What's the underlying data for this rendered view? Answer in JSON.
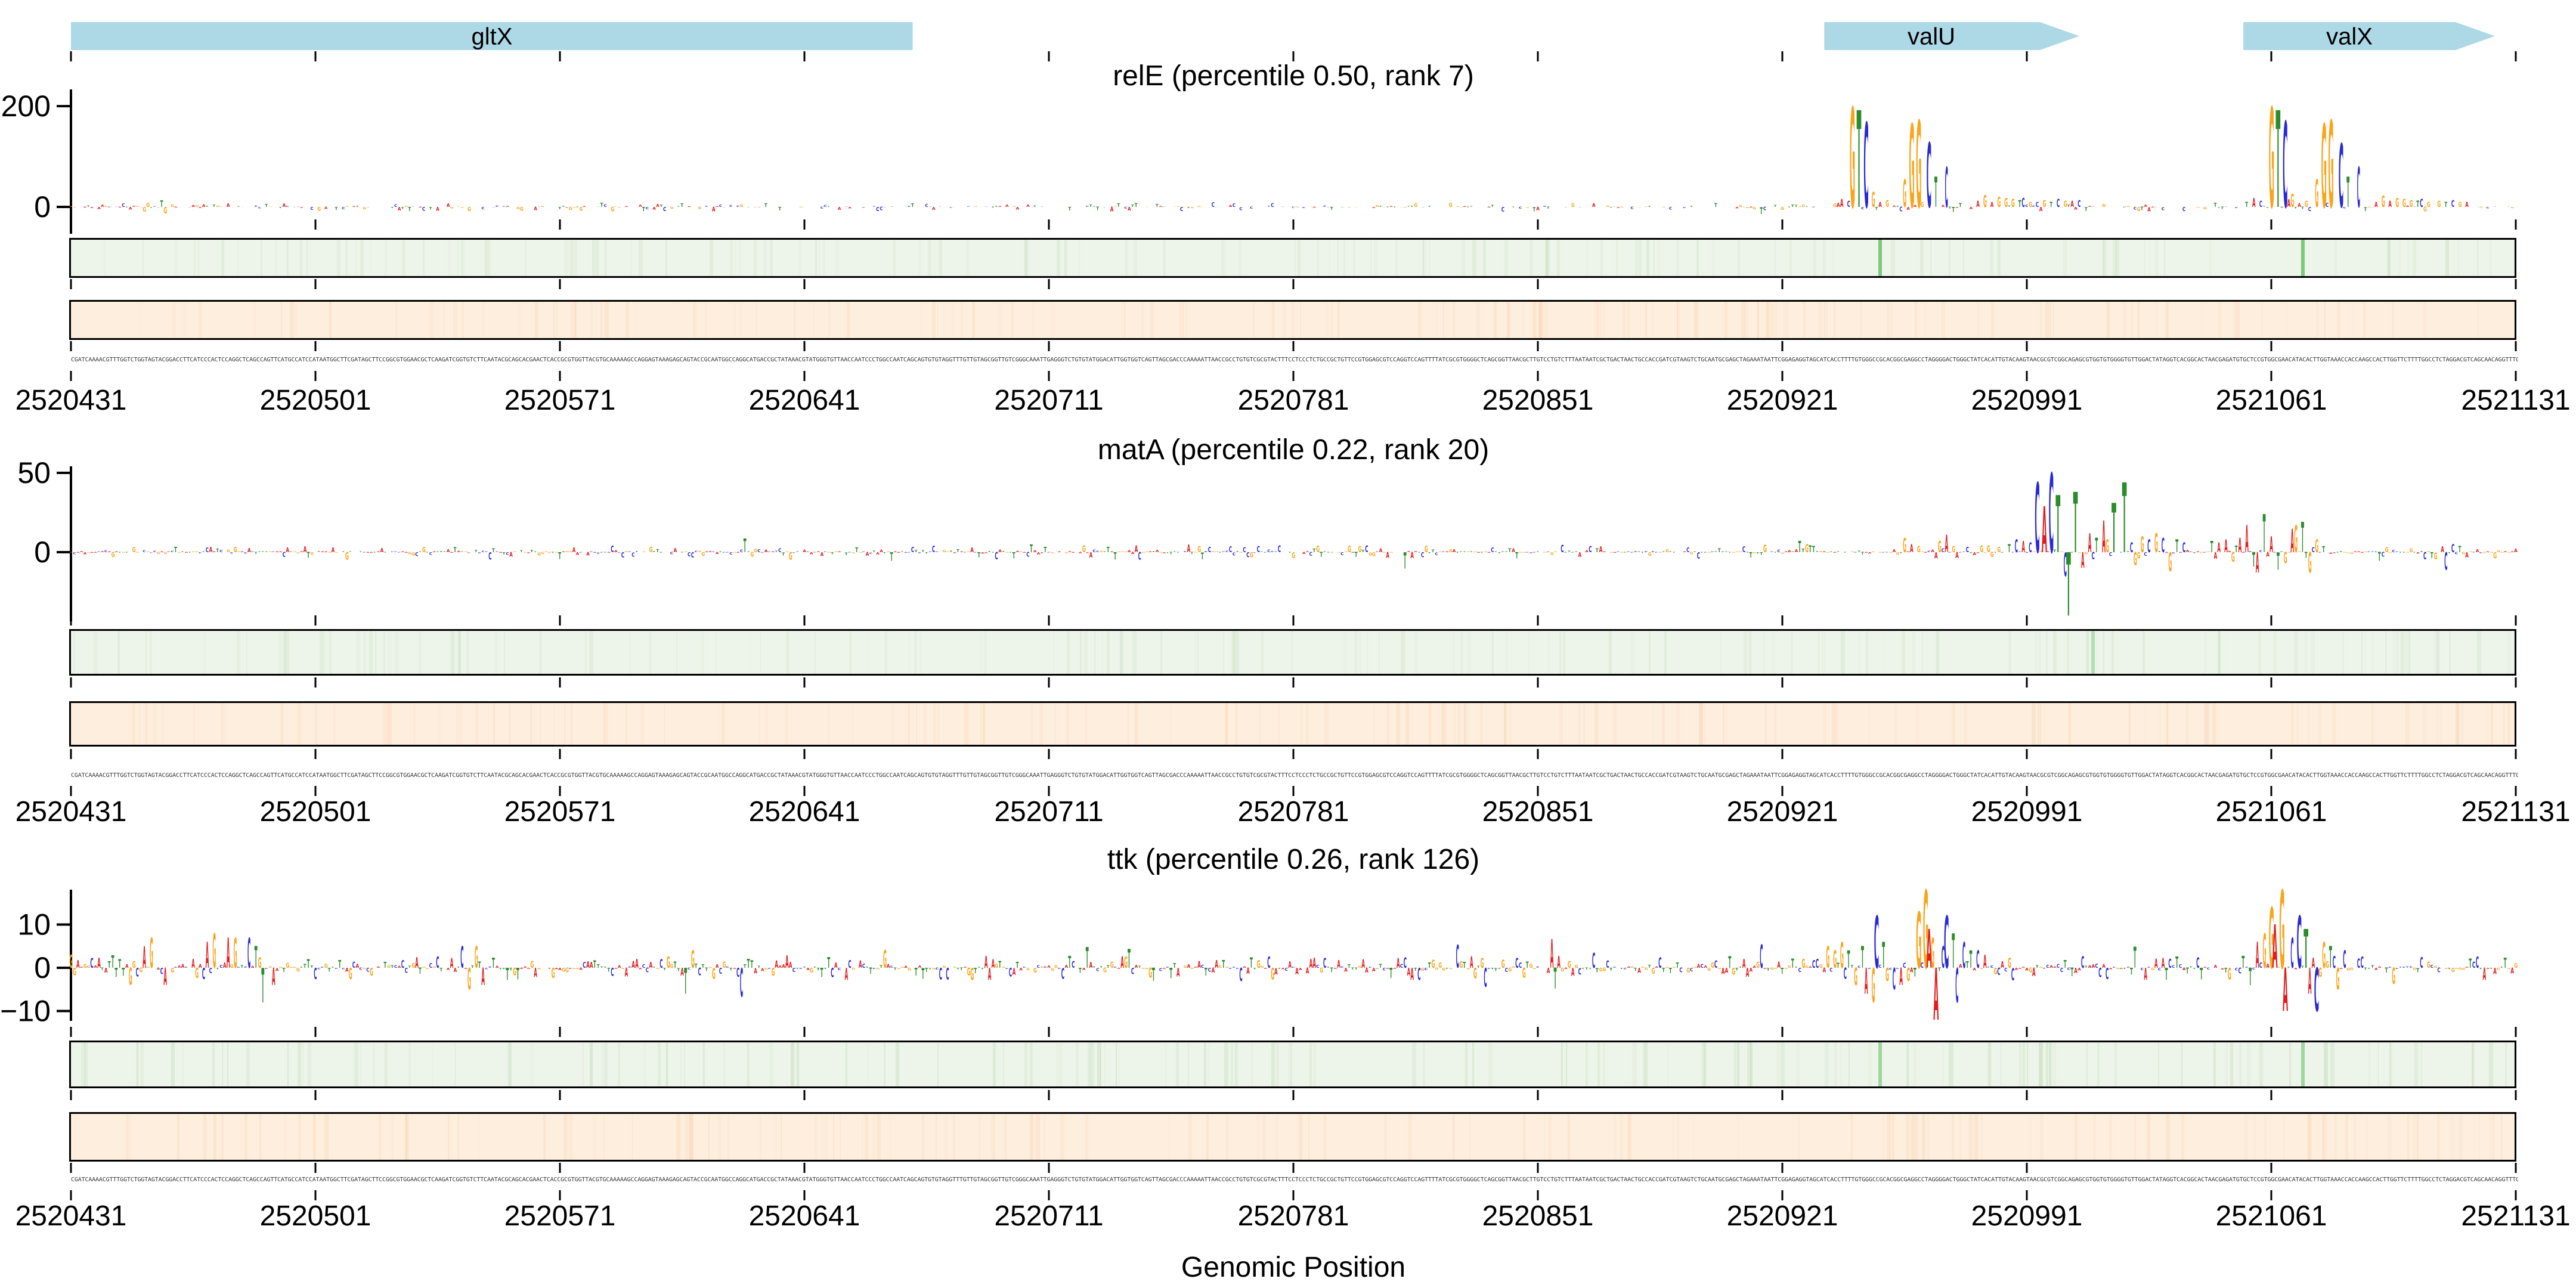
{
  "figure": {
    "xlabel": "Genomic Position"
  },
  "axis": {
    "x_start": 2520431,
    "x_end": 2521131,
    "xticks": [
      2520431,
      2520501,
      2520571,
      2520641,
      2520711,
      2520781,
      2520851,
      2520921,
      2520991,
      2521061,
      2521131
    ]
  },
  "genes": [
    {
      "label": "gltX",
      "start": 2520431,
      "end": 2520672,
      "arrow": false
    },
    {
      "label": "valU",
      "start": 2520933,
      "end": 2521006,
      "arrow": true
    },
    {
      "label": "valX",
      "start": 2521053,
      "end": 2521125,
      "arrow": true
    }
  ],
  "colors": {
    "A": "#e41a1c",
    "C": "#2929d6",
    "G": "#f9a41b",
    "T": "#2b8c2b",
    "gene_fill": "#ADD8E6",
    "green_strip_bg": "#edf4e9",
    "green_strip_tint": "110,170,100",
    "orange_strip_bg": "#fdeede",
    "orange_strip_tint": "244,164,96",
    "sequence_text": "#3a3a3a"
  },
  "sequence": {
    "prefix": "CGATCAAAACGTTTGGTCTGGTAGTACGGACCTTCATCCCACTCCAGGCTCAGCCAGTTCATGCCATCCATAATGGCTTCGATAGCTTCCGGCGTGGAACGCTCAAGATCGGTGTCTTCAATACGCAGCACGAACTCACCGCGTGGTTACGTGCAAAAAGCCAGGAGTAAAGAGCAGTACCGC",
    "length": 700,
    "seed": 7
  },
  "chart_data": [
    {
      "type": "logo-track",
      "gene": "relE",
      "percentile": "0.50",
      "rank": "7",
      "title": "relE (percentile 0.50, rank 7)",
      "ylim": [
        -40,
        210
      ],
      "yticks": [
        {
          "value": 200,
          "label": "200"
        },
        {
          "value": 0,
          "label": "0"
        }
      ],
      "noise": {
        "seed": 11,
        "density": 0.93,
        "base": 0.5,
        "amp": 9,
        "pow": 5,
        "spikeAmp": 24,
        "spikeProb": 0.012
      },
      "peaks": [
        [
          2520938,
          "A",
          16
        ],
        [
          2520940,
          "C",
          12
        ],
        [
          2520941,
          "G",
          198
        ],
        [
          2520943,
          "T",
          192
        ],
        [
          2520945,
          "C",
          168
        ],
        [
          2520947,
          "G",
          30
        ],
        [
          2520949,
          "A",
          10
        ],
        [
          2520951,
          "G",
          14
        ],
        [
          2520956,
          "G",
          55
        ],
        [
          2520958,
          "G",
          165
        ],
        [
          2520960,
          "G",
          172
        ],
        [
          2520963,
          "C",
          128
        ],
        [
          2520965,
          "T",
          60
        ],
        [
          2520968,
          "C",
          80
        ],
        [
          2520970,
          "T",
          -10
        ],
        [
          2520972,
          "T",
          8
        ],
        [
          2520977,
          "A",
          12
        ],
        [
          2520979,
          "G",
          24
        ],
        [
          2520981,
          "A",
          10
        ],
        [
          2520983,
          "G",
          20
        ],
        [
          2520985,
          "G",
          18
        ],
        [
          2520987,
          "G",
          16
        ],
        [
          2520989,
          "T",
          14
        ],
        [
          2520990,
          "C",
          18
        ],
        [
          2520992,
          "G",
          10
        ],
        [
          2520994,
          "C",
          10
        ],
        [
          2520996,
          "G",
          14
        ],
        [
          2520998,
          "T",
          10
        ],
        [
          2521000,
          "C",
          16
        ],
        [
          2521002,
          "G",
          12
        ],
        [
          2521004,
          "A",
          12
        ],
        [
          2521006,
          "C",
          14
        ],
        [
          2521008,
          "T",
          -8
        ],
        [
          2521054,
          "T",
          10
        ],
        [
          2521056,
          "A",
          18
        ],
        [
          2521058,
          "C",
          12
        ],
        [
          2521061,
          "G",
          198
        ],
        [
          2521063,
          "T",
          192
        ],
        [
          2521065,
          "C",
          170
        ],
        [
          2521067,
          "G",
          26
        ],
        [
          2521069,
          "A",
          8
        ],
        [
          2521071,
          "G",
          12
        ],
        [
          2521074,
          "G",
          55
        ],
        [
          2521076,
          "G",
          165
        ],
        [
          2521078,
          "G",
          172
        ],
        [
          2521081,
          "C",
          126
        ],
        [
          2521083,
          "T",
          60
        ],
        [
          2521086,
          "C",
          80
        ],
        [
          2521088,
          "T",
          -8
        ],
        [
          2521091,
          "A",
          10
        ],
        [
          2521093,
          "G",
          22
        ],
        [
          2521095,
          "A",
          12
        ],
        [
          2521097,
          "G",
          18
        ],
        [
          2521099,
          "G",
          16
        ],
        [
          2521101,
          "G",
          14
        ],
        [
          2521103,
          "T",
          12
        ],
        [
          2521104,
          "C",
          16
        ],
        [
          2521106,
          "G",
          10
        ],
        [
          2521109,
          "G",
          12
        ],
        [
          2521111,
          "T",
          10
        ],
        [
          2521113,
          "C",
          14
        ],
        [
          2521115,
          "G",
          10
        ],
        [
          2521117,
          "A",
          10
        ]
      ],
      "green_strip_lines": [
        {
          "pos": 2520949,
          "color": "#7ec87e",
          "w": 6
        },
        {
          "pos": 2521070,
          "color": "#7ec87e",
          "w": 6
        }
      ],
      "orange_strip_lines": []
    },
    {
      "type": "logo-track",
      "gene": "matA",
      "percentile": "0.22",
      "rank": "20",
      "title": "matA (percentile 0.22, rank 20)",
      "ylim": [
        -45,
        55
      ],
      "yticks": [
        {
          "value": 50,
          "label": "50"
        },
        {
          "value": 0,
          "label": "0"
        }
      ],
      "noise": {
        "seed": 22,
        "density": 0.93,
        "base": 0.35,
        "amp": 4.5,
        "pow": 4,
        "spikeAmp": 8,
        "spikeProb": 0.015
      },
      "peaks": [
        [
          2520926,
          "T",
          7
        ],
        [
          2520928,
          "G",
          5
        ],
        [
          2520930,
          "T",
          4
        ],
        [
          2520956,
          "G",
          9
        ],
        [
          2520958,
          "A",
          5
        ],
        [
          2520960,
          "G",
          4
        ],
        [
          2520966,
          "G",
          7
        ],
        [
          2520968,
          "A",
          11
        ],
        [
          2520970,
          "G",
          4
        ],
        [
          2520986,
          "T",
          5
        ],
        [
          2520988,
          "C",
          8
        ],
        [
          2520990,
          "A",
          7
        ],
        [
          2520992,
          "C",
          6
        ],
        [
          2520994,
          "C",
          44
        ],
        [
          2520996,
          "A",
          29
        ],
        [
          2520998,
          "C",
          50
        ],
        [
          2521000,
          "T",
          36
        ],
        [
          2521002,
          "C",
          -15
        ],
        [
          2521003,
          "T",
          -40
        ],
        [
          2521005,
          "T",
          38
        ],
        [
          2521007,
          "A",
          -10
        ],
        [
          2521009,
          "A",
          12
        ],
        [
          2521011,
          "T",
          9
        ],
        [
          2521013,
          "A",
          20
        ],
        [
          2521014,
          "G",
          8
        ],
        [
          2521016,
          "T",
          31
        ],
        [
          2521019,
          "T",
          44
        ],
        [
          2521021,
          "C",
          6
        ],
        [
          2521022,
          "G",
          -8
        ],
        [
          2521024,
          "G",
          10
        ],
        [
          2521026,
          "C",
          8
        ],
        [
          2521028,
          "G",
          12
        ],
        [
          2521030,
          "C",
          9
        ],
        [
          2521032,
          "G",
          -12
        ],
        [
          2521034,
          "T",
          8
        ],
        [
          2521036,
          "C",
          6
        ],
        [
          2521044,
          "T",
          7
        ],
        [
          2521046,
          "A",
          6
        ],
        [
          2521048,
          "A",
          8
        ],
        [
          2521050,
          "G",
          -6
        ],
        [
          2521052,
          "A",
          9
        ],
        [
          2521054,
          "A",
          17
        ],
        [
          2521056,
          "T",
          -9
        ],
        [
          2521057,
          "A",
          -13
        ],
        [
          2521059,
          "T",
          24
        ],
        [
          2521061,
          "A",
          10
        ],
        [
          2521063,
          "T",
          -11
        ],
        [
          2521065,
          "G",
          -7
        ],
        [
          2521067,
          "A",
          15
        ],
        [
          2521068,
          "G",
          17
        ],
        [
          2521070,
          "T",
          19
        ],
        [
          2521072,
          "G",
          -13
        ],
        [
          2521074,
          "G",
          8
        ],
        [
          2521111,
          "C",
          -11
        ],
        [
          2521113,
          "C",
          5
        ],
        [
          2521115,
          "T",
          4
        ]
      ],
      "green_strip_lines": [
        {
          "pos": 2521010,
          "color": "#b4dfb4",
          "w": 6
        }
      ],
      "orange_strip_lines": []
    },
    {
      "type": "logo-track",
      "gene": "ttk",
      "percentile": "0.26",
      "rank": "126",
      "title": "ttk (percentile 0.26, rank 126)",
      "ylim": [
        -14,
        19
      ],
      "yticks": [
        {
          "value": 10,
          "label": "10"
        },
        {
          "value": 0,
          "label": "0"
        },
        {
          "value": -10,
          "label": "−10"
        }
      ],
      "noise": {
        "seed": 33,
        "density": 0.96,
        "base": 0.25,
        "amp": 2.6,
        "pow": 2.5,
        "spikeAmp": 4.5,
        "spikeProb": 0.03
      },
      "peaks": [
        [
          2520452,
          "A",
          5
        ],
        [
          2520454,
          "G",
          7
        ],
        [
          2520458,
          "A",
          -4
        ],
        [
          2520470,
          "A",
          6
        ],
        [
          2520472,
          "G",
          8
        ],
        [
          2520476,
          "A",
          7
        ],
        [
          2520478,
          "G",
          7
        ],
        [
          2520482,
          "C",
          7
        ],
        [
          2520484,
          "T",
          5
        ],
        [
          2520486,
          "T",
          -8
        ],
        [
          2520489,
          "A",
          -4
        ],
        [
          2520543,
          "C",
          5
        ],
        [
          2520545,
          "G",
          -5
        ],
        [
          2520547,
          "G",
          5
        ],
        [
          2520549,
          "A",
          -4
        ],
        [
          2520607,
          "T",
          -6
        ],
        [
          2520609,
          "G",
          4
        ],
        [
          2520934,
          "G",
          5
        ],
        [
          2520936,
          "G",
          4
        ],
        [
          2520938,
          "G",
          6
        ],
        [
          2520940,
          "T",
          4
        ],
        [
          2520942,
          "G",
          -4
        ],
        [
          2520944,
          "T",
          5
        ],
        [
          2520945,
          "A",
          -6
        ],
        [
          2520947,
          "G",
          -8
        ],
        [
          2520948,
          "C",
          12
        ],
        [
          2520950,
          "T",
          6
        ],
        [
          2520951,
          "G",
          -3
        ],
        [
          2520953,
          "C",
          -5
        ],
        [
          2520955,
          "A",
          -4
        ],
        [
          2520957,
          "G",
          -3
        ],
        [
          2520959,
          "T",
          -2
        ],
        [
          2520960,
          "G",
          13
        ],
        [
          2520962,
          "G",
          18
        ],
        [
          2520963,
          "A",
          9
        ],
        [
          2520964,
          "G",
          7
        ],
        [
          2520965,
          "A",
          -12
        ],
        [
          2520967,
          "C",
          5
        ],
        [
          2520968,
          "C",
          12
        ],
        [
          2520970,
          "T",
          8
        ],
        [
          2520971,
          "C",
          -8
        ],
        [
          2520973,
          "C",
          6
        ],
        [
          2520975,
          "T",
          4
        ],
        [
          2520977,
          "C",
          4
        ],
        [
          2520979,
          "A",
          3
        ],
        [
          2521055,
          "T",
          -4
        ],
        [
          2521057,
          "A",
          6
        ],
        [
          2521059,
          "G",
          8
        ],
        [
          2521061,
          "G",
          14
        ],
        [
          2521062,
          "A",
          10
        ],
        [
          2521064,
          "G",
          18
        ],
        [
          2521065,
          "A",
          -10
        ],
        [
          2521067,
          "C",
          7
        ],
        [
          2521069,
          "C",
          12
        ],
        [
          2521071,
          "T",
          9
        ],
        [
          2521072,
          "A",
          -6
        ],
        [
          2521074,
          "C",
          -10
        ],
        [
          2521076,
          "G",
          6
        ],
        [
          2521078,
          "T",
          5
        ],
        [
          2521080,
          "G",
          -5
        ],
        [
          2521082,
          "C",
          4
        ]
      ],
      "green_strip_lines": [
        {
          "pos": 2520949,
          "color": "#9ed69e",
          "w": 6
        },
        {
          "pos": 2521070,
          "color": "#9ed69e",
          "w": 6
        }
      ],
      "orange_strip_lines": []
    }
  ]
}
